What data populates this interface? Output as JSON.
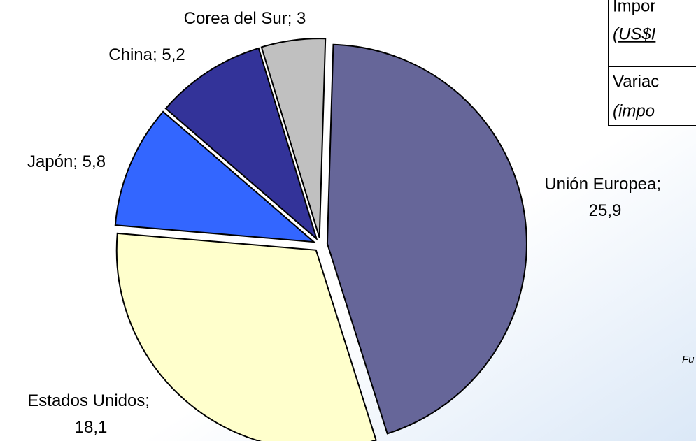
{
  "chart_data": {
    "type": "pie",
    "categories": [
      "Unión Europea",
      "Estados Unidos",
      "Japón",
      "China",
      "Corea del Sur"
    ],
    "values": [
      25.9,
      18.1,
      5.8,
      5.2,
      3
    ],
    "value_labels": [
      "25,9",
      "18,1",
      "5,8",
      "5,2",
      "3"
    ],
    "label_separator": "; ",
    "colors": [
      "#666699",
      "#ffffcc",
      "#3366ff",
      "#333399",
      "#c0c0c0"
    ]
  },
  "table": {
    "rows": [
      [
        "Impor",
        "(US$I"
      ],
      [
        "Variac",
        "(impo"
      ]
    ]
  },
  "footnote": "Fu"
}
